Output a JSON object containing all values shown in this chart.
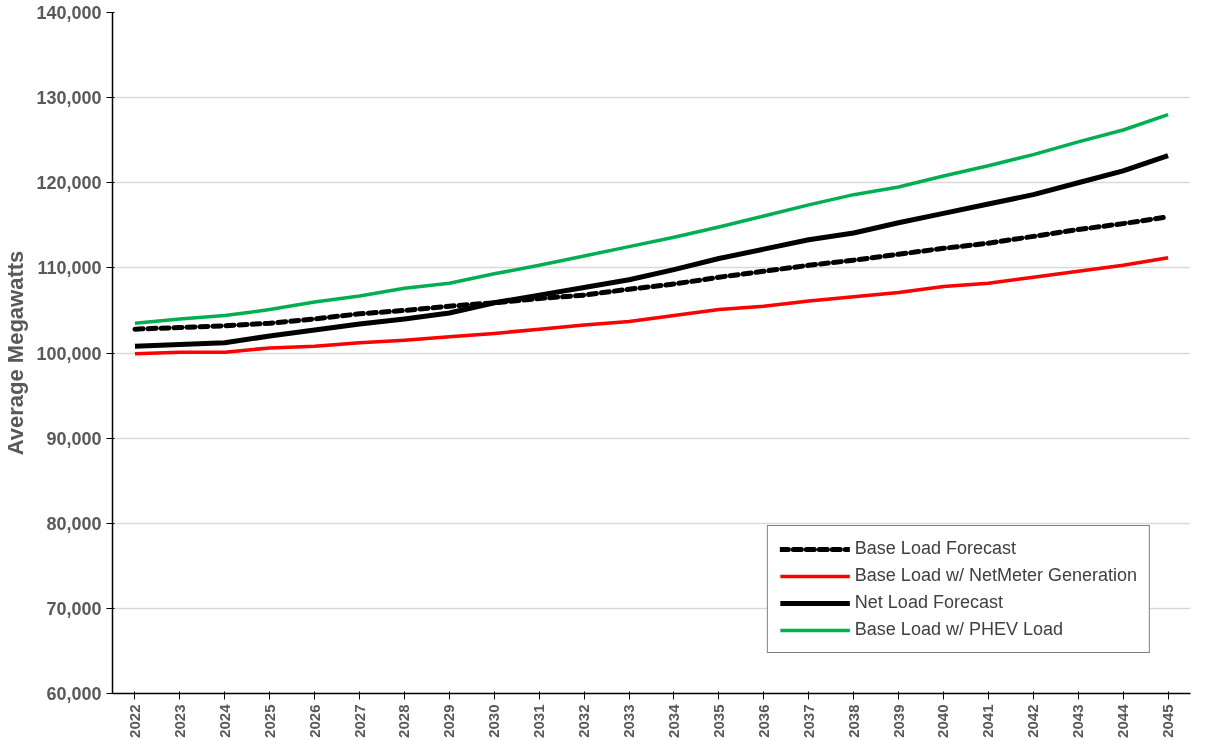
{
  "chart_data": {
    "type": "line",
    "ylabel": "Average Megawatts",
    "categories": [
      "2022",
      "2023",
      "2024",
      "2025",
      "2026",
      "2027",
      "2028",
      "2029",
      "2030",
      "2031",
      "2032",
      "2033",
      "2034",
      "2035",
      "2036",
      "2037",
      "2038",
      "2039",
      "2040",
      "2041",
      "2042",
      "2043",
      "2044",
      "2045"
    ],
    "ylim": [
      60000,
      140000
    ],
    "yticks": [
      {
        "value": 60000,
        "label": "60,000"
      },
      {
        "value": 70000,
        "label": "70,000"
      },
      {
        "value": 80000,
        "label": "80,000"
      },
      {
        "value": 90000,
        "label": "90,000"
      },
      {
        "value": 100000,
        "label": "100,000"
      },
      {
        "value": 110000,
        "label": "110,000"
      },
      {
        "value": 120000,
        "label": "120,000"
      },
      {
        "value": 130000,
        "label": "130,000"
      },
      {
        "value": 140000,
        "label": "140,000"
      }
    ],
    "grid": "y",
    "legend": "bottom right",
    "marker": "none",
    "series": [
      {
        "name": "Base Load Forecast",
        "color": "#000000",
        "line_style": "dashed",
        "values": [
          102800,
          103000,
          103200,
          103500,
          104000,
          104600,
          105000,
          105500,
          105900,
          106400,
          106800,
          107500,
          108100,
          108900,
          109600,
          110300,
          110900,
          111600,
          112300,
          112900,
          113700,
          114500,
          115200,
          116000
        ]
      },
      {
        "name": "Base Load w/ NetMeter Generation",
        "color": "#ff0000",
        "line_style": "solid",
        "values": [
          99900,
          100100,
          100100,
          100600,
          100800,
          101200,
          101500,
          101900,
          102300,
          102800,
          103300,
          103700,
          104400,
          105100,
          105500,
          106100,
          106600,
          107100,
          107800,
          108200,
          108900,
          109600,
          110300,
          111200
        ]
      },
      {
        "name": "Net Load Forecast",
        "color": "#000000",
        "line_style": "solid",
        "values": [
          100800,
          101000,
          101200,
          102000,
          102700,
          103400,
          104000,
          104700,
          105900,
          106800,
          107700,
          108600,
          109800,
          111100,
          112200,
          113300,
          114100,
          115300,
          116400,
          117500,
          118600,
          120000,
          121400,
          123200
        ]
      },
      {
        "name": "Base Load w/ PHEV Load",
        "color": "#00b050",
        "line_style": "solid",
        "values": [
          103500,
          104000,
          104400,
          105100,
          106000,
          106700,
          107600,
          108200,
          109300,
          110300,
          111400,
          112500,
          113600,
          114800,
          116100,
          117400,
          118600,
          119500,
          120800,
          122000,
          123300,
          124800,
          126200,
          128000
        ]
      }
    ]
  }
}
